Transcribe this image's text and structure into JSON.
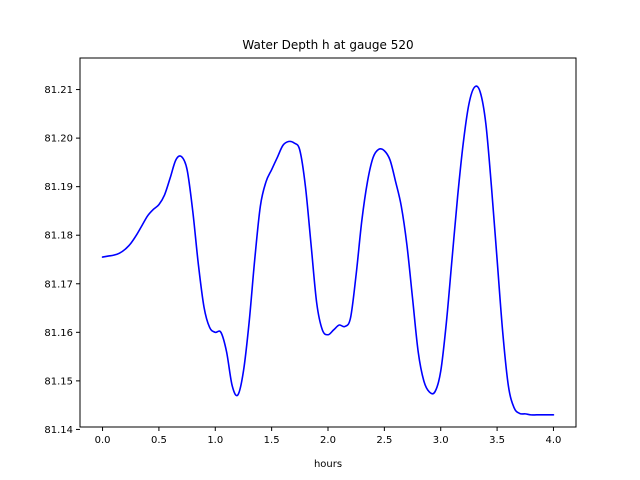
{
  "chart_data": {
    "type": "line",
    "title": "Water Depth h at gauge 520",
    "xlabel": "hours",
    "ylabel": "",
    "xlim": [
      -0.2,
      4.2
    ],
    "ylim": [
      81.1405,
      81.2165
    ],
    "xticks": [
      0.0,
      0.5,
      1.0,
      1.5,
      2.0,
      2.5,
      3.0,
      3.5,
      4.0
    ],
    "xtick_labels": [
      "0.0",
      "0.5",
      "1.0",
      "1.5",
      "2.0",
      "2.5",
      "3.0",
      "3.5",
      "4.0"
    ],
    "yticks": [
      81.14,
      81.15,
      81.16,
      81.17,
      81.18,
      81.19,
      81.2,
      81.21
    ],
    "ytick_labels": [
      "81.14",
      "81.15",
      "81.16",
      "81.17",
      "81.18",
      "81.19",
      "81.20",
      "81.21"
    ],
    "grid": false,
    "series": [
      {
        "color": "#0000ff",
        "x": [
          0.0,
          0.05,
          0.1,
          0.15,
          0.2,
          0.25,
          0.3,
          0.35,
          0.4,
          0.45,
          0.5,
          0.55,
          0.6,
          0.65,
          0.7,
          0.75,
          0.8,
          0.85,
          0.9,
          0.95,
          1.0,
          1.05,
          1.1,
          1.15,
          1.2,
          1.25,
          1.3,
          1.35,
          1.4,
          1.45,
          1.5,
          1.55,
          1.6,
          1.65,
          1.7,
          1.75,
          1.8,
          1.85,
          1.9,
          1.95,
          2.0,
          2.05,
          2.1,
          2.15,
          2.2,
          2.25,
          2.3,
          2.35,
          2.4,
          2.45,
          2.5,
          2.55,
          2.6,
          2.65,
          2.7,
          2.75,
          2.8,
          2.85,
          2.9,
          2.95,
          3.0,
          3.05,
          3.1,
          3.15,
          3.2,
          3.25,
          3.3,
          3.35,
          3.4,
          3.45,
          3.5,
          3.55,
          3.6,
          3.65,
          3.7,
          3.75,
          3.8,
          3.85,
          3.9,
          3.95,
          4.0
        ],
        "y": [
          81.1755,
          81.1757,
          81.1759,
          81.1763,
          81.1771,
          81.1783,
          81.18,
          81.182,
          81.184,
          81.1853,
          81.1863,
          81.1883,
          81.1918,
          81.1955,
          81.1962,
          81.1935,
          81.185,
          81.174,
          81.1652,
          81.161,
          81.16,
          81.16,
          81.156,
          81.149,
          81.1471,
          81.152,
          81.162,
          81.175,
          81.186,
          81.191,
          81.1935,
          81.196,
          81.1985,
          81.1993,
          81.199,
          81.1975,
          81.19,
          81.178,
          81.166,
          81.1605,
          81.1595,
          81.1605,
          81.1615,
          81.1612,
          81.163,
          81.172,
          81.183,
          81.191,
          81.196,
          81.1977,
          81.1974,
          81.1955,
          81.191,
          81.186,
          81.178,
          81.167,
          81.156,
          81.15,
          81.1477,
          81.1478,
          81.152,
          81.162,
          81.175,
          81.188,
          81.199,
          81.207,
          81.2105,
          81.2095,
          81.203,
          81.19,
          81.175,
          81.16,
          81.149,
          81.1445,
          81.1433,
          81.1432,
          81.143,
          81.143,
          81.143,
          81.143,
          81.143
        ]
      }
    ]
  }
}
